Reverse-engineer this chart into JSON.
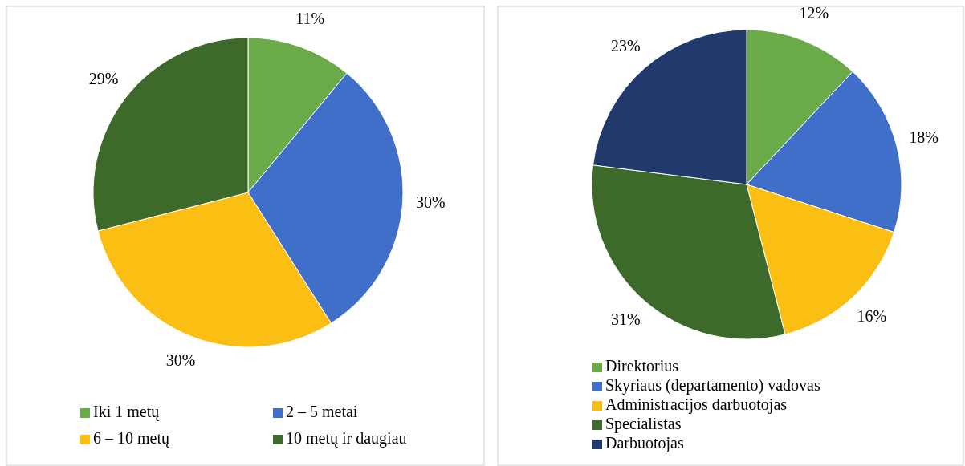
{
  "chart_data": [
    {
      "type": "pie",
      "categories": [
        "Iki 1 metų",
        "2 – 5 metai",
        "6 – 10 metų",
        "10 metų ir daugiau"
      ],
      "values": [
        11,
        30,
        30,
        29
      ],
      "colors": [
        "#6aaa48",
        "#3f6fc8",
        "#fbbf14",
        "#3d6a2a"
      ],
      "value_labels": [
        "11%",
        "30%",
        "30%",
        "29%"
      ],
      "legend": "bottom"
    },
    {
      "type": "pie",
      "categories": [
        "Direktorius",
        "Skyriaus (departamento) vadovas",
        "Administracijos darbuotojas",
        "Specialistas",
        "Darbuotojas"
      ],
      "values": [
        12,
        18,
        16,
        31,
        23
      ],
      "colors": [
        "#6aaa48",
        "#3f6fc8",
        "#fbbf14",
        "#3d6a2a",
        "#22396d"
      ],
      "value_labels": [
        "12%",
        "18%",
        "16%",
        "31%",
        "23%"
      ],
      "legend": "bottom"
    }
  ]
}
